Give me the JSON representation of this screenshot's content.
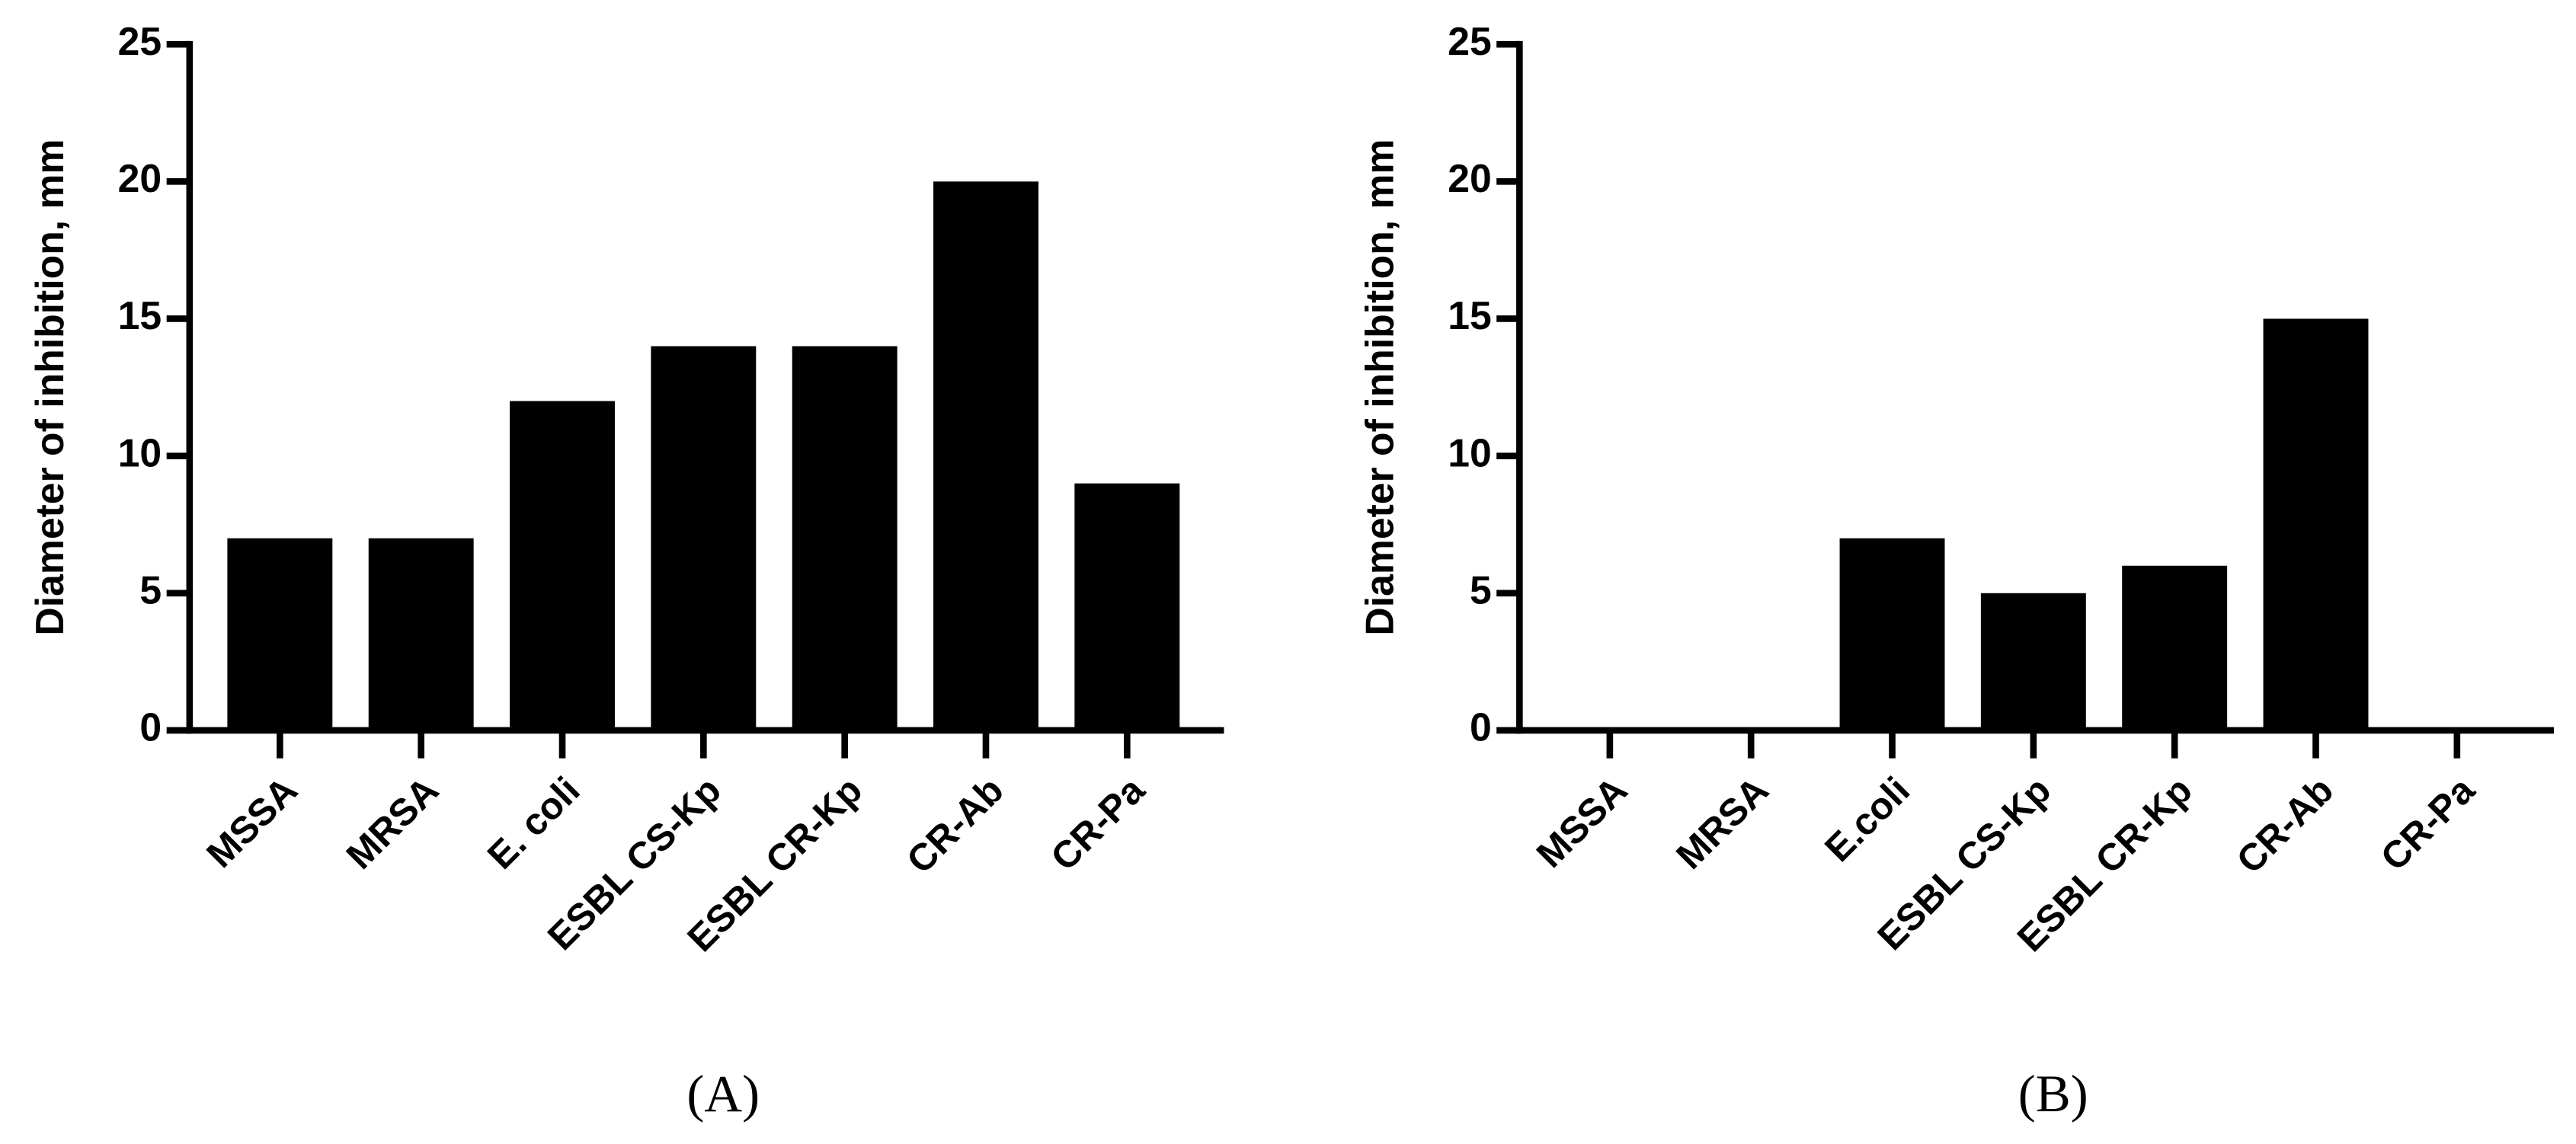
{
  "chart_data": [
    {
      "type": "bar",
      "panel": "(A)",
      "ylabel": "Diameter of inhibition, mm",
      "categories": [
        "MSSA",
        "MRSA",
        "E. coli",
        "ESBL CS-Kp",
        "ESBL CR-Kp",
        "CR-Ab",
        "CR-Pa"
      ],
      "values": [
        7,
        7,
        12,
        14,
        14,
        20,
        9
      ],
      "color": "#000000",
      "ylim": [
        0,
        25
      ],
      "yticks": [
        0,
        5,
        10,
        15,
        20,
        25
      ]
    },
    {
      "type": "bar",
      "panel": "(B)",
      "ylabel": "Diameter of inhibition, mm",
      "categories": [
        "MSSA",
        "MRSA",
        "E.coli",
        "ESBL CS-Kp",
        "ESBL CR-Kp",
        "CR-Ab",
        "CR-Pa"
      ],
      "values": [
        0,
        0,
        7,
        5,
        6,
        15,
        0
      ],
      "color": "#000000",
      "ylim": [
        0,
        25
      ],
      "yticks": [
        0,
        5,
        10,
        15,
        20,
        25
      ]
    }
  ]
}
